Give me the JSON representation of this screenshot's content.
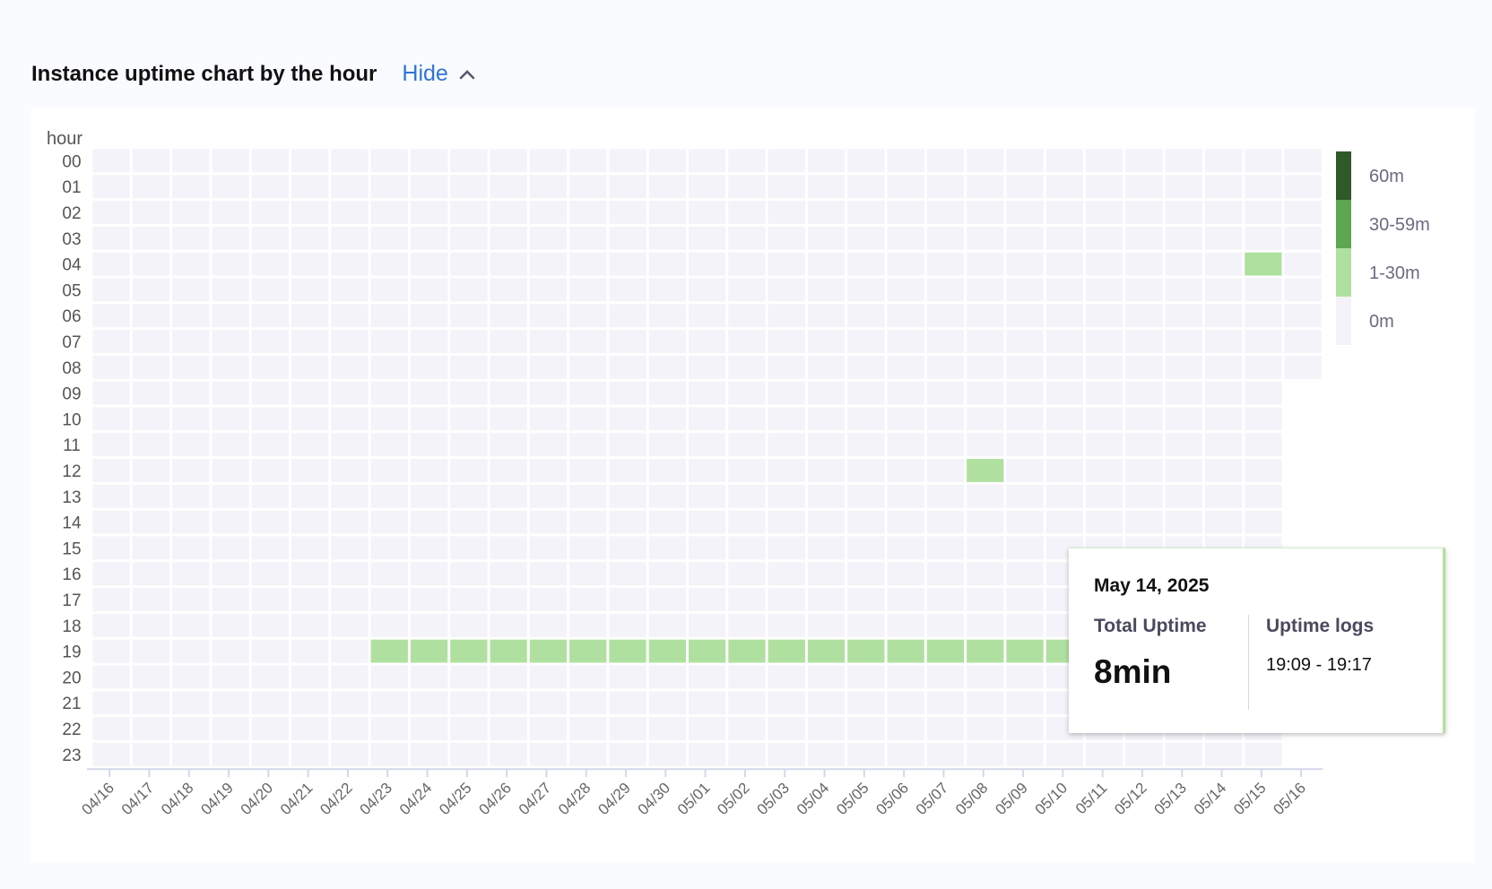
{
  "header": {
    "title": "Instance uptime chart by the hour",
    "toggle_label": "Hide",
    "toggle_icon": "chevron-up-icon"
  },
  "chart_data": {
    "type": "heatmap",
    "ylabel": "hour",
    "x": [
      "04/16",
      "04/17",
      "04/18",
      "04/19",
      "04/20",
      "04/21",
      "04/22",
      "04/23",
      "04/24",
      "04/25",
      "04/26",
      "04/27",
      "04/28",
      "04/29",
      "04/30",
      "05/01",
      "05/02",
      "05/03",
      "05/04",
      "05/05",
      "05/06",
      "05/07",
      "05/08",
      "05/09",
      "05/10",
      "05/11",
      "05/12",
      "05/13",
      "05/14",
      "05/15",
      "05/16"
    ],
    "y": [
      "00",
      "01",
      "02",
      "03",
      "04",
      "05",
      "06",
      "07",
      "08",
      "09",
      "10",
      "11",
      "12",
      "13",
      "14",
      "15",
      "16",
      "17",
      "18",
      "19",
      "20",
      "21",
      "22",
      "23"
    ],
    "last_day_hours_available": 9,
    "legend": [
      {
        "label": "60m",
        "color": "#2f5a27"
      },
      {
        "label": "30-59m",
        "color": "#5ea651"
      },
      {
        "label": "1-30m",
        "color": "#b0e0a0"
      },
      {
        "label": "0m",
        "color": "#f3f3f9"
      }
    ],
    "cells": [
      {
        "date": "05/15",
        "hour": "04",
        "level": "1-30m"
      },
      {
        "date": "05/08",
        "hour": "12",
        "level": "1-30m"
      },
      {
        "date": "04/23",
        "hour": "19",
        "level": "1-30m"
      },
      {
        "date": "04/24",
        "hour": "19",
        "level": "1-30m"
      },
      {
        "date": "04/25",
        "hour": "19",
        "level": "1-30m"
      },
      {
        "date": "04/26",
        "hour": "19",
        "level": "1-30m"
      },
      {
        "date": "04/27",
        "hour": "19",
        "level": "1-30m"
      },
      {
        "date": "04/28",
        "hour": "19",
        "level": "1-30m"
      },
      {
        "date": "04/29",
        "hour": "19",
        "level": "1-30m"
      },
      {
        "date": "04/30",
        "hour": "19",
        "level": "1-30m"
      },
      {
        "date": "05/01",
        "hour": "19",
        "level": "1-30m"
      },
      {
        "date": "05/02",
        "hour": "19",
        "level": "1-30m"
      },
      {
        "date": "05/03",
        "hour": "19",
        "level": "1-30m"
      },
      {
        "date": "05/04",
        "hour": "19",
        "level": "1-30m"
      },
      {
        "date": "05/05",
        "hour": "19",
        "level": "1-30m"
      },
      {
        "date": "05/06",
        "hour": "19",
        "level": "1-30m"
      },
      {
        "date": "05/07",
        "hour": "19",
        "level": "1-30m"
      },
      {
        "date": "05/08",
        "hour": "19",
        "level": "1-30m"
      },
      {
        "date": "05/09",
        "hour": "19",
        "level": "1-30m"
      },
      {
        "date": "05/10",
        "hour": "19",
        "level": "1-30m"
      },
      {
        "date": "05/11",
        "hour": "19",
        "level": "1-30m"
      },
      {
        "date": "05/12",
        "hour": "19",
        "level": "1-30m"
      },
      {
        "date": "05/13",
        "hour": "19",
        "level": "1-30m"
      },
      {
        "date": "05/14",
        "hour": "19",
        "level": "1-30m"
      },
      {
        "date": "05/15",
        "hour": "19",
        "level": "1-30m"
      },
      {
        "date": "05/14",
        "hour": "20",
        "level": "1-30m"
      },
      {
        "date": "05/14",
        "hour": "21",
        "level": "1-30m"
      }
    ],
    "hovered": {
      "date": "05/14",
      "hour": "19"
    }
  },
  "tooltip": {
    "date": "May 14, 2025",
    "total_label": "Total Uptime",
    "total_value": "8min",
    "logs_label": "Uptime logs",
    "logs": [
      "19:09 - 19:17"
    ]
  }
}
